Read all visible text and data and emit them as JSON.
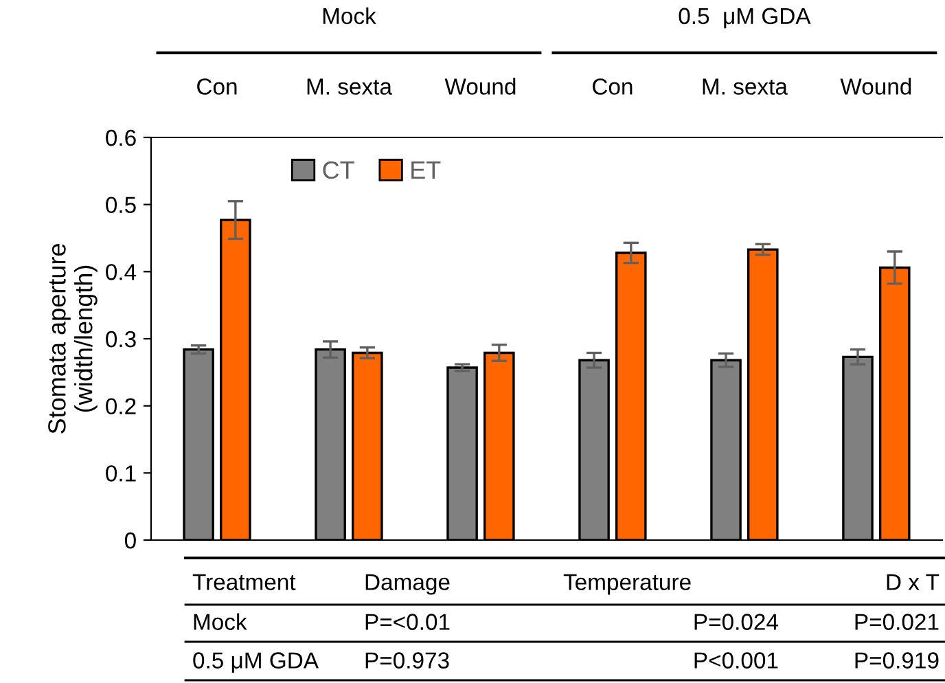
{
  "chart_data": {
    "type": "bar",
    "categories": [
      "Con",
      "M. sexta",
      "Wound",
      "Con",
      "M. sexta",
      "Wound"
    ],
    "series": [
      {
        "name": "CT",
        "color": "#808080",
        "values": [
          0.284,
          0.284,
          0.257,
          0.268,
          0.268,
          0.273
        ],
        "errors": [
          0.006,
          0.012,
          0.005,
          0.011,
          0.01,
          0.011
        ]
      },
      {
        "name": "ET",
        "color": "#ff6600",
        "values": [
          0.477,
          0.279,
          0.279,
          0.428,
          0.433,
          0.406
        ],
        "errors": [
          0.028,
          0.008,
          0.012,
          0.015,
          0.008,
          0.024
        ]
      }
    ],
    "ylabel": "Stomata aperture\n(width/length)",
    "ylim": [
      0,
      0.6
    ],
    "yticks": [
      0,
      0.1,
      0.2,
      0.3,
      0.4,
      0.5,
      0.6
    ],
    "legend": "top left",
    "grid": false,
    "annotations": [
      "Mock",
      "0.5  μM GDA",
      "Treatment",
      "Damage",
      "Temperature",
      "D x T",
      "Mock",
      "P=<0.01",
      "P=0.024",
      "P=0.021",
      "0.5 μM GDA",
      "P=0.973",
      "P<0.001",
      "P=0.919"
    ]
  }
}
